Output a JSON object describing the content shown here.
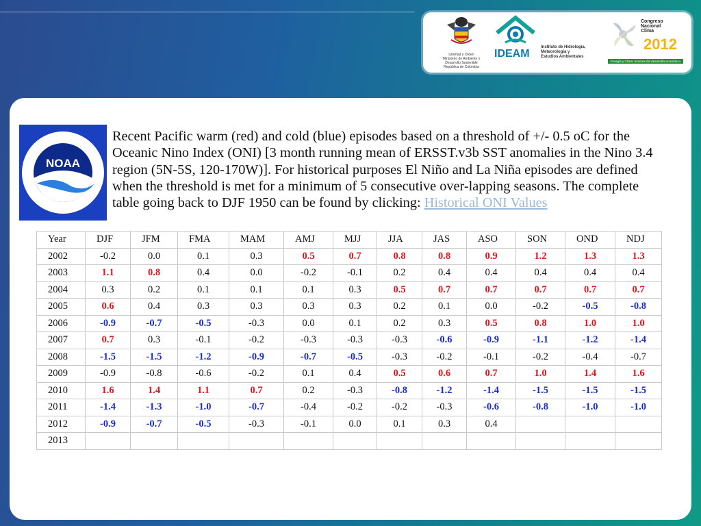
{
  "logos": {
    "minam_lines": [
      "Libertad y Orden",
      "Ministerio de Ambiente y",
      "Desarrollo Sostenible",
      "República de Colombia"
    ],
    "ideam_brand": "IDEAM",
    "ideam_lines": [
      "Instituto de Hidrología,",
      "Meteorología y",
      "Estudios Ambientales"
    ],
    "congreso_lines": [
      "Congreso",
      "Nacional",
      "Clima"
    ],
    "congreso_year": "2012",
    "congreso_tagline": "Energía y Clima: motores del desarrollo económico"
  },
  "description": {
    "text": "Recent Pacific warm (red) and cold (blue) episodes based on a threshold of +/- 0.5 oC for the Oceanic Nino Index (ONI) [3 month running mean of ERSST.v3b SST anomalies in the Nino 3.4 region (5N-5S, 120-170W)]. For historical purposes El Niño and La Niña episodes are defined when the threshold is met for a minimum of 5 consecutive over-lapping seasons.  The complete table going back to DJF 1950 can be found by clicking: ",
    "link_text": "Historical ONI Values"
  },
  "table": {
    "headers": [
      "Year",
      "DJF",
      "JFM",
      "FMA",
      "MAM",
      "AMJ",
      "MJJ",
      "JJA",
      "JAS",
      "ASO",
      "SON",
      "OND",
      "NDJ"
    ],
    "rows": [
      {
        "year": "2002",
        "values": [
          "-0.2",
          "0.0",
          "0.1",
          "0.3",
          "0.5",
          "0.7",
          "0.8",
          "0.8",
          "0.9",
          "1.2",
          "1.3",
          "1.3"
        ],
        "styles": [
          "",
          "",
          "",
          "",
          "w",
          "w",
          "w",
          "w",
          "w",
          "w",
          "w",
          "w"
        ]
      },
      {
        "year": "2003",
        "values": [
          "1.1",
          "0.8",
          "0.4",
          "0.0",
          "-0.2",
          "-0.1",
          "0.2",
          "0.4",
          "0.4",
          "0.4",
          "0.4",
          "0.4"
        ],
        "styles": [
          "w",
          "w",
          "",
          "",
          "",
          "",
          "",
          "",
          "",
          "",
          "",
          ""
        ]
      },
      {
        "year": "2004",
        "values": [
          "0.3",
          "0.2",
          "0.1",
          "0.1",
          "0.1",
          "0.3",
          "0.5",
          "0.7",
          "0.7",
          "0.7",
          "0.7",
          "0.7"
        ],
        "styles": [
          "",
          "",
          "",
          "",
          "",
          "",
          "w",
          "w",
          "w",
          "w",
          "w",
          "w"
        ]
      },
      {
        "year": "2005",
        "values": [
          "0.6",
          "0.4",
          "0.3",
          "0.3",
          "0.3",
          "0.3",
          "0.2",
          "0.1",
          "0.0",
          "-0.2",
          "-0.5",
          "-0.8"
        ],
        "styles": [
          "w",
          "",
          "",
          "",
          "",
          "",
          "",
          "",
          "",
          "",
          "c",
          "c"
        ]
      },
      {
        "year": "2006",
        "values": [
          "-0.9",
          "-0.7",
          "-0.5",
          "-0.3",
          "0.0",
          "0.1",
          "0.2",
          "0.3",
          "0.5",
          "0.8",
          "1.0",
          "1.0"
        ],
        "styles": [
          "c",
          "c",
          "c",
          "",
          "",
          "",
          "",
          "",
          "w",
          "w",
          "w",
          "w"
        ]
      },
      {
        "year": "2007",
        "values": [
          "0.7",
          "0.3",
          "-0.1",
          "-0.2",
          "-0.3",
          "-0.3",
          "-0.3",
          "-0.6",
          "-0.9",
          "-1.1",
          "-1.2",
          "-1.4"
        ],
        "styles": [
          "w",
          "",
          "",
          "",
          "",
          "",
          "",
          "c",
          "c",
          "c",
          "c",
          "c"
        ]
      },
      {
        "year": "2008",
        "values": [
          "-1.5",
          "-1.5",
          "-1.2",
          "-0.9",
          "-0.7",
          "-0.5",
          "-0.3",
          "-0.2",
          "-0.1",
          "-0.2",
          "-0.4",
          "-0.7"
        ],
        "styles": [
          "c",
          "c",
          "c",
          "c",
          "c",
          "c",
          "",
          "",
          "",
          "",
          "",
          ""
        ]
      },
      {
        "year": "2009",
        "values": [
          "-0.9",
          "-0.8",
          "-0.6",
          "-0.2",
          "0.1",
          "0.4",
          "0.5",
          "0.6",
          "0.7",
          "1.0",
          "1.4",
          "1.6"
        ],
        "styles": [
          "",
          "",
          "",
          "",
          "",
          "",
          "w",
          "w",
          "w",
          "w",
          "w",
          "w"
        ]
      },
      {
        "year": "2010",
        "values": [
          "1.6",
          "1.4",
          "1.1",
          "0.7",
          "0.2",
          "-0.3",
          "-0.8",
          "-1.2",
          "-1.4",
          "-1.5",
          "-1.5",
          "-1.5"
        ],
        "styles": [
          "w",
          "w",
          "w",
          "w",
          "",
          "",
          "c",
          "c",
          "c",
          "c",
          "c",
          "c"
        ]
      },
      {
        "year": "2011",
        "values": [
          "-1.4",
          "-1.3",
          "-1.0",
          "-0.7",
          "-0.4",
          "-0.2",
          "-0.2",
          "-0.3",
          "-0.6",
          "-0.8",
          "-1.0",
          "-1.0"
        ],
        "styles": [
          "c",
          "c",
          "c",
          "c",
          "",
          "",
          "",
          "",
          "c",
          "c",
          "c",
          "c"
        ]
      },
      {
        "year": "2012",
        "values": [
          "-0.9",
          "-0.7",
          "-0.5",
          "-0.3",
          "-0.1",
          "0.0",
          "0.1",
          "0.3",
          "0.4",
          "",
          "",
          ""
        ],
        "styles": [
          "c",
          "c",
          "c",
          "",
          "",
          "",
          "",
          "",
          "",
          "",
          "",
          ""
        ]
      },
      {
        "year": "2013",
        "values": [
          "",
          "",
          "",
          "",
          "",
          "",
          "",
          "",
          "",
          "",
          "",
          ""
        ],
        "styles": [
          "",
          "",
          "",
          "",
          "",
          "",
          "",
          "",
          "",
          "",
          "",
          ""
        ]
      }
    ]
  },
  "colors": {
    "warm": "#e8141c",
    "cold": "#1a2bd0",
    "noaa_blue": "#1a3fbf"
  },
  "icons": [
    "noaa-logo-icon",
    "colombia-coat-of-arms-icon",
    "ideam-logo-icon",
    "congreso-clima-logo-icon"
  ]
}
